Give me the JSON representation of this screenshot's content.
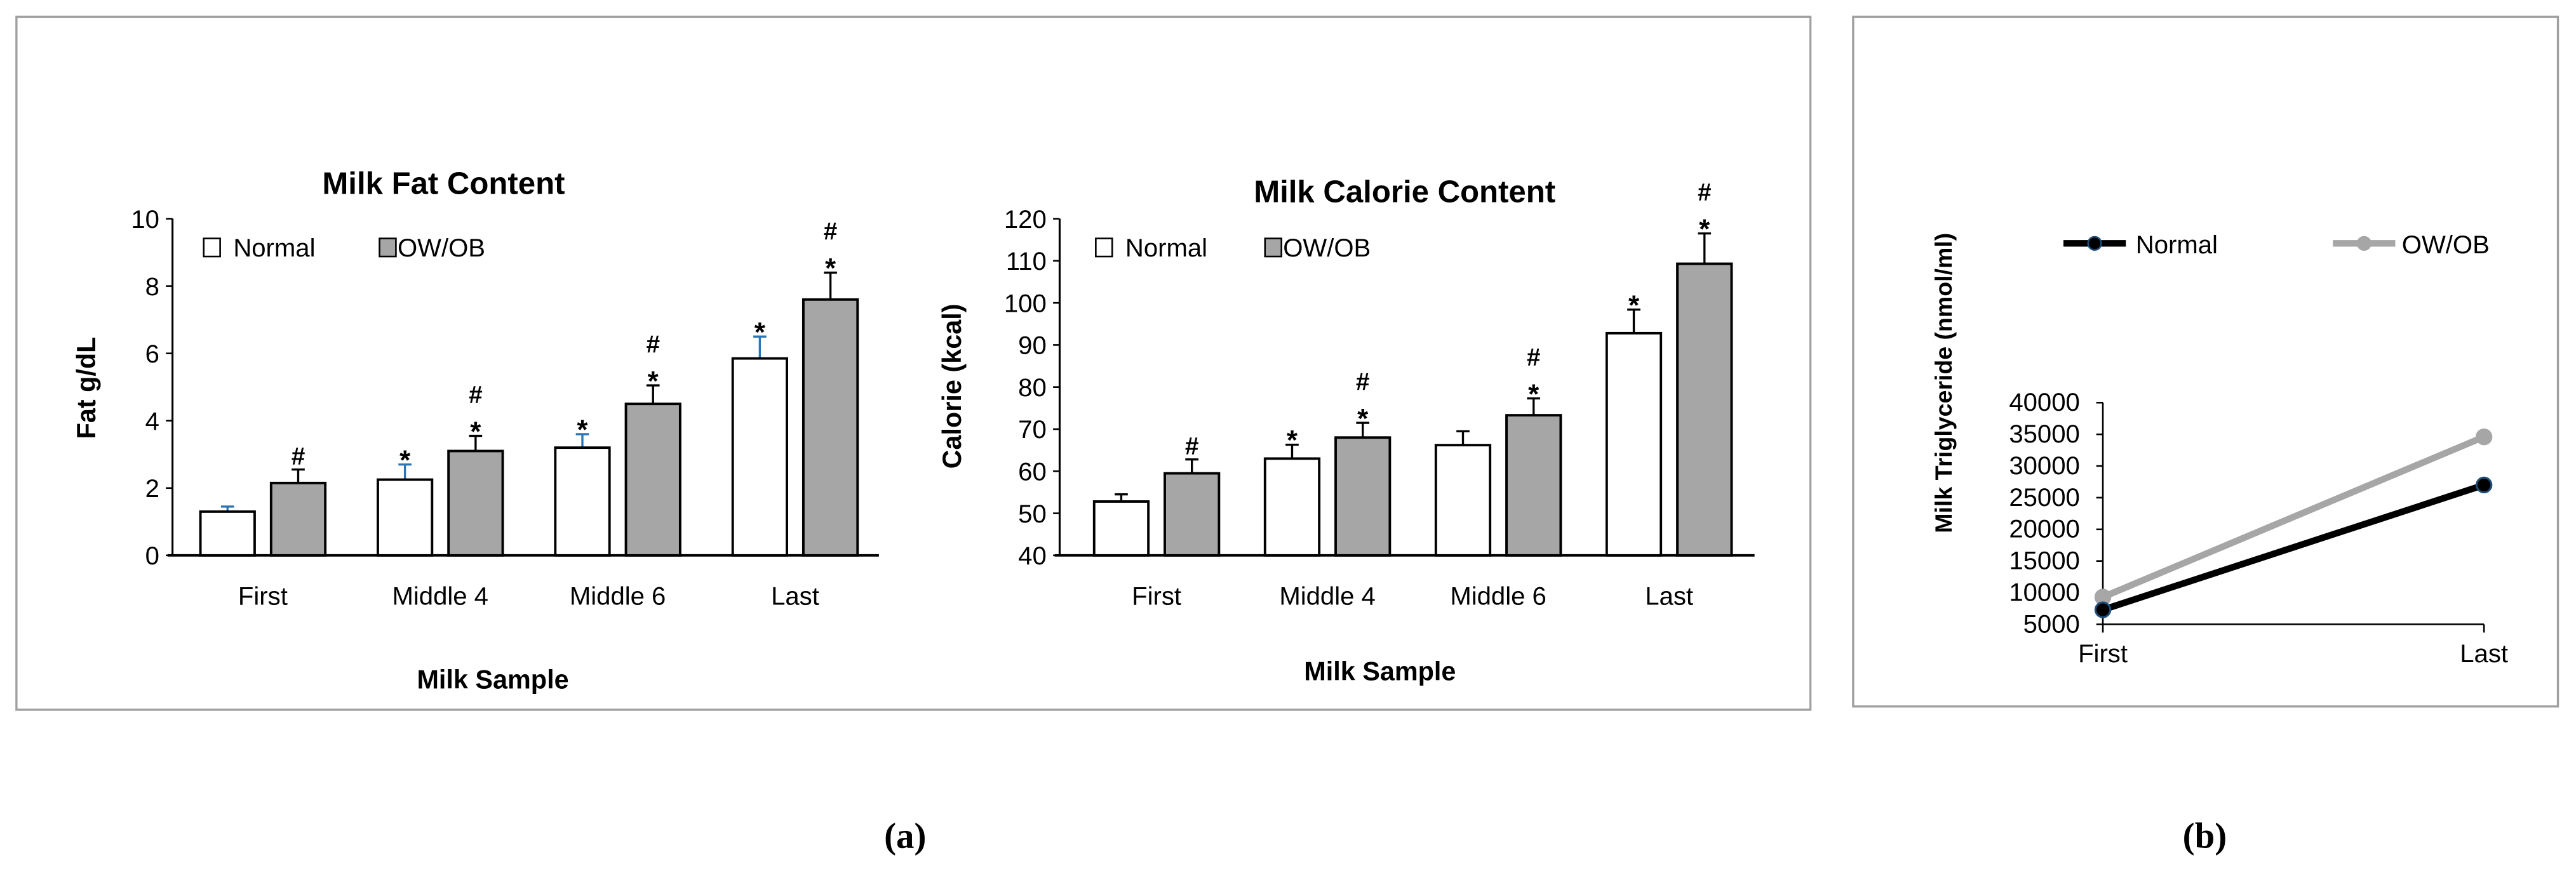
{
  "colors": {
    "normal_bar": "#ffffff",
    "owob_bar": "#a6a6a6",
    "normal_error_bar_first_chart": "#2e75b6",
    "normal_line": "#000000",
    "normal_marker_edge": "#1f4e79",
    "owob_line": "#a6a6a6",
    "frame": "#a0a0a0"
  },
  "panel_labels": [
    "(a)",
    "(b)"
  ],
  "chart_data": [
    {
      "type": "bar",
      "title": "Milk Fat Content",
      "xlabel": "Milk Sample",
      "ylabel": "Fat g/dL",
      "ylim": [
        0,
        10
      ],
      "yticks": [
        "0",
        "2",
        "4",
        "6",
        "8",
        "10"
      ],
      "categories": [
        "First",
        "Middle 4",
        "Middle 6",
        "Last"
      ],
      "legend": "top-left",
      "series": [
        {
          "name": "Normal",
          "values": [
            1.3,
            2.25,
            3.2,
            5.85
          ],
          "error_upper": [
            1.45,
            2.7,
            3.6,
            6.5
          ],
          "annotations": [
            "",
            "*",
            "*",
            "*"
          ]
        },
        {
          "name": "OW/OB",
          "values": [
            2.15,
            3.1,
            4.5,
            7.6
          ],
          "error_upper": [
            2.55,
            3.55,
            5.05,
            8.4
          ],
          "annotations": [
            "#",
            "#*",
            "#*",
            "#*"
          ]
        }
      ]
    },
    {
      "type": "bar",
      "title": "Milk Calorie Content",
      "xlabel": "Milk Sample",
      "ylabel": "Calorie (kcal)",
      "ylim": [
        40,
        120
      ],
      "yticks": [
        "40",
        "50",
        "60",
        "70",
        "80",
        "90",
        "100",
        "110",
        "120"
      ],
      "categories": [
        "First",
        "Middle 4",
        "Middle 6",
        "Last"
      ],
      "legend": "top-left",
      "series": [
        {
          "name": "Normal",
          "values": [
            52.8,
            63,
            66.2,
            92.8
          ],
          "error_upper": [
            54.5,
            66.3,
            69.5,
            98.4
          ],
          "annotations": [
            "",
            "*",
            "",
            "*"
          ]
        },
        {
          "name": "OW/OB",
          "values": [
            59.5,
            68,
            73.3,
            109.3
          ],
          "error_upper": [
            62.8,
            71.5,
            77.3,
            116.5
          ],
          "annotations": [
            "#",
            "#*",
            "#*",
            "#*"
          ]
        }
      ]
    },
    {
      "type": "line",
      "title": "",
      "xlabel": "",
      "ylabel": "Milk Triglyceride (nmol/ml)",
      "ylim": [
        5000,
        40000
      ],
      "yticks": [
        "5000",
        "10000",
        "15000",
        "20000",
        "25000",
        "30000",
        "35000",
        "40000"
      ],
      "categories": [
        "First",
        "Last"
      ],
      "legend": "top",
      "series": [
        {
          "name": "Normal",
          "values": [
            7300,
            27000
          ]
        },
        {
          "name": "OW/OB",
          "values": [
            9300,
            34600
          ]
        }
      ]
    }
  ]
}
